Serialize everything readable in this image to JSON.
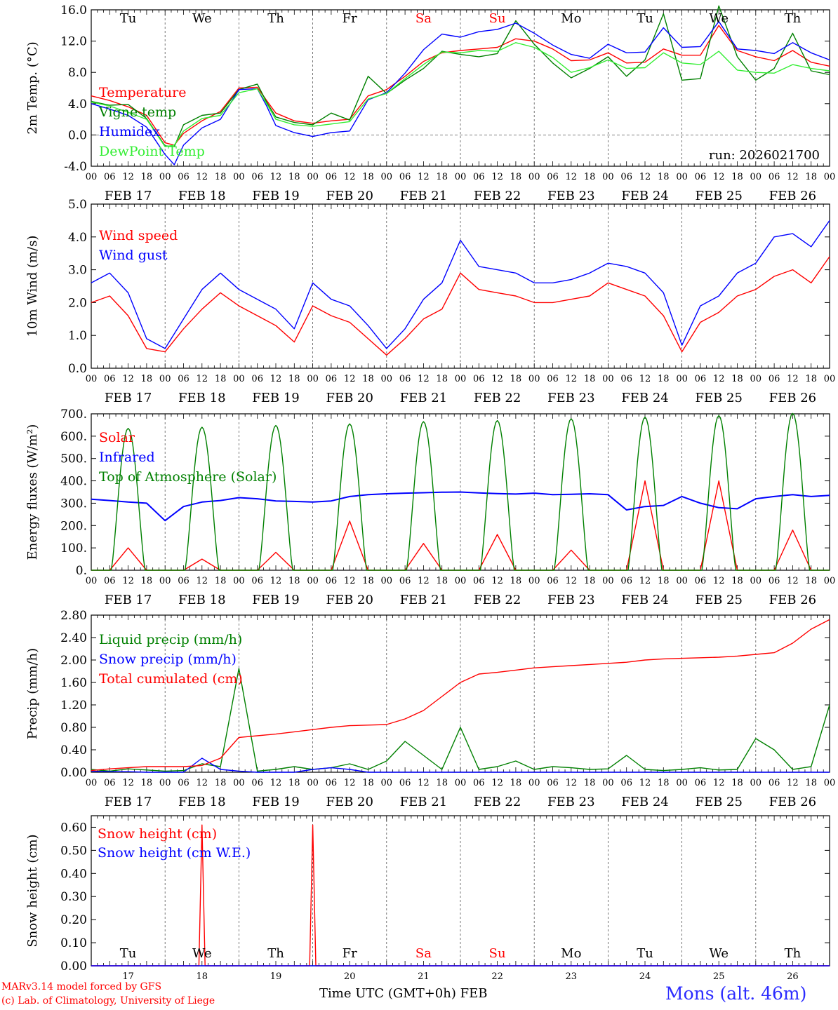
{
  "colors": {
    "red": "#ff0000",
    "green": "#008000",
    "blue": "#0000ff",
    "light_green": "#33ee33",
    "grid": "#555555",
    "axis": "#000000",
    "weekend": "#ff0000",
    "station": "#2c2cff"
  },
  "days": [
    {
      "dow": "Tu",
      "month_label": "FEB 17",
      "num": "17",
      "weekend": false
    },
    {
      "dow": "We",
      "month_label": "FEB 18",
      "num": "18",
      "weekend": false
    },
    {
      "dow": "Th",
      "month_label": "FEB 19",
      "num": "19",
      "weekend": false
    },
    {
      "dow": "Fr",
      "month_label": "FEB 20",
      "num": "20",
      "weekend": false
    },
    {
      "dow": "Sa",
      "month_label": "FEB 21",
      "num": "21",
      "weekend": true
    },
    {
      "dow": "Su",
      "month_label": "FEB 22",
      "num": "22",
      "weekend": true
    },
    {
      "dow": "Mo",
      "month_label": "FEB 23",
      "num": "23",
      "weekend": false
    },
    {
      "dow": "Tu",
      "month_label": "FEB 24",
      "num": "24",
      "weekend": false
    },
    {
      "dow": "We",
      "month_label": "FEB 25",
      "num": "25",
      "weekend": false
    },
    {
      "dow": "Th",
      "month_label": "FEB 26",
      "num": "26",
      "weekend": false
    }
  ],
  "hour_ticks": [
    "00",
    "06",
    "12",
    "18"
  ],
  "final_hour_tick": "00",
  "chart_data": [
    {
      "id": "temp",
      "type": "line",
      "ylabel": "2m Temp. (°C)",
      "ylim": [
        -4,
        16
      ],
      "yticks": [
        "-4.0",
        "0.0",
        "4.0",
        "8.0",
        "12.0",
        "16.0"
      ],
      "ytick_values": [
        -4,
        0,
        4,
        8,
        12,
        16
      ],
      "zero_line": true,
      "run_label": "run: 2026021700",
      "x_hours": [
        0,
        6,
        12,
        18,
        24,
        27,
        30,
        36,
        42,
        48,
        54,
        57,
        60,
        66,
        72,
        78,
        84,
        90,
        96,
        102,
        108,
        114,
        120,
        126,
        132,
        138,
        144,
        150,
        156,
        162,
        168,
        174,
        180,
        186,
        192,
        198,
        204,
        210,
        216,
        222,
        228,
        234,
        240
      ],
      "series": [
        {
          "name": "Temperature",
          "color": "red",
          "values": [
            5.0,
            4.4,
            3.6,
            2.5,
            -1.0,
            -1.3,
            0.2,
            1.8,
            3.0,
            6.0,
            6.1,
            4.4,
            2.8,
            1.8,
            1.5,
            1.8,
            2.0,
            5.0,
            5.8,
            7.5,
            9.4,
            10.5,
            10.8,
            11.0,
            11.2,
            12.3,
            12.0,
            11.0,
            9.5,
            9.6,
            10.5,
            9.2,
            9.3,
            11.0,
            10.2,
            10.2,
            14.0,
            10.8,
            10.0,
            9.5,
            10.8,
            9.3,
            8.8
          ]
        },
        {
          "name": "Vigne temp",
          "color": "green",
          "values": [
            4.3,
            3.8,
            3.9,
            2.1,
            -1.4,
            -1.5,
            1.3,
            2.5,
            2.8,
            5.8,
            6.5,
            4.2,
            2.3,
            1.6,
            1.3,
            2.8,
            1.9,
            7.5,
            5.3,
            7.0,
            8.5,
            10.7,
            10.3,
            10.0,
            10.4,
            14.6,
            11.6,
            9.2,
            7.3,
            8.5,
            10.0,
            7.5,
            9.6,
            15.5,
            7.0,
            7.2,
            16.5,
            10.0,
            7.0,
            8.5,
            13.0,
            8.2,
            7.7
          ]
        },
        {
          "name": "Humidex",
          "color": "blue",
          "values": [
            4.0,
            3.3,
            2.5,
            1.0,
            -2.5,
            -3.8,
            -1.3,
            0.9,
            2.0,
            5.8,
            5.9,
            3.7,
            1.2,
            0.3,
            -0.2,
            0.3,
            0.5,
            4.5,
            5.4,
            7.9,
            10.9,
            12.9,
            12.5,
            13.2,
            13.5,
            14.3,
            13.0,
            11.5,
            10.3,
            9.8,
            11.6,
            10.5,
            10.6,
            13.7,
            11.2,
            11.3,
            14.5,
            11.0,
            10.8,
            10.4,
            11.8,
            10.5,
            9.6
          ]
        },
        {
          "name": "DewPoint Temp",
          "color": "light_green",
          "values": [
            4.2,
            3.7,
            2.9,
            2.0,
            -1.5,
            -1.3,
            0.5,
            2.1,
            2.5,
            5.4,
            5.9,
            4.0,
            2.0,
            1.3,
            1.1,
            1.4,
            1.7,
            4.6,
            5.3,
            7.2,
            9.0,
            10.6,
            10.5,
            10.8,
            10.7,
            11.8,
            11.2,
            9.9,
            8.0,
            8.6,
            9.6,
            8.5,
            8.6,
            10.5,
            9.2,
            9.0,
            10.7,
            8.3,
            8.0,
            7.9,
            9.0,
            8.5,
            8.2
          ]
        }
      ]
    },
    {
      "id": "wind",
      "type": "line",
      "ylabel": "10m Wind (m/s)",
      "ylim": [
        0,
        5
      ],
      "yticks": [
        "0.0",
        "1.0",
        "2.0",
        "3.0",
        "4.0",
        "5.0"
      ],
      "ytick_values": [
        0,
        1,
        2,
        3,
        4,
        5
      ],
      "x_hours": [
        0,
        6,
        12,
        18,
        24,
        30,
        36,
        42,
        48,
        54,
        60,
        66,
        72,
        78,
        84,
        90,
        96,
        102,
        108,
        114,
        120,
        126,
        132,
        138,
        144,
        150,
        156,
        162,
        168,
        174,
        180,
        186,
        192,
        198,
        204,
        210,
        216,
        222,
        228,
        234,
        240
      ],
      "series": [
        {
          "name": "Wind speed",
          "color": "red",
          "values": [
            2.0,
            2.2,
            1.6,
            0.6,
            0.5,
            1.2,
            1.8,
            2.3,
            1.9,
            1.6,
            1.3,
            0.8,
            1.9,
            1.6,
            1.4,
            0.9,
            0.4,
            0.9,
            1.5,
            1.8,
            2.9,
            2.4,
            2.3,
            2.2,
            2.0,
            2.0,
            2.1,
            2.2,
            2.6,
            2.4,
            2.2,
            1.6,
            0.5,
            1.4,
            1.7,
            2.2,
            2.4,
            2.8,
            3.0,
            2.6,
            3.4
          ]
        },
        {
          "name": "Wind gust",
          "color": "blue",
          "values": [
            2.6,
            2.9,
            2.3,
            0.9,
            0.6,
            1.5,
            2.4,
            2.9,
            2.4,
            2.1,
            1.8,
            1.2,
            2.6,
            2.1,
            1.9,
            1.3,
            0.6,
            1.2,
            2.1,
            2.6,
            3.9,
            3.1,
            3.0,
            2.9,
            2.6,
            2.6,
            2.7,
            2.9,
            3.2,
            3.1,
            2.9,
            2.3,
            0.7,
            1.9,
            2.2,
            2.9,
            3.2,
            4.0,
            4.1,
            3.7,
            4.5
          ]
        }
      ]
    },
    {
      "id": "flux",
      "type": "line",
      "ylabel": "Energy fluxes (W/m²)",
      "ylim": [
        0,
        700
      ],
      "yticks": [
        "0.",
        "100.",
        "200.",
        "300.",
        "400.",
        "500.",
        "600.",
        "700."
      ],
      "ytick_values": [
        0,
        100,
        200,
        300,
        400,
        500,
        600,
        700
      ],
      "x_hours": [
        0,
        6,
        12,
        18,
        24,
        30,
        36,
        42,
        48,
        54,
        60,
        66,
        72,
        78,
        84,
        90,
        96,
        102,
        108,
        114,
        120,
        126,
        132,
        138,
        144,
        150,
        156,
        162,
        168,
        174,
        180,
        186,
        192,
        198,
        204,
        210,
        216,
        222,
        228,
        234,
        240
      ],
      "toa_daily_peaks": [
        635,
        640,
        648,
        655,
        665,
        670,
        678,
        685,
        692,
        702
      ],
      "series": [
        {
          "name": "Solar",
          "color": "red",
          "values": [
            0,
            0,
            100,
            0,
            0,
            0,
            50,
            0,
            0,
            0,
            80,
            0,
            0,
            0,
            220,
            0,
            0,
            0,
            120,
            0,
            0,
            0,
            160,
            0,
            0,
            0,
            90,
            0,
            0,
            0,
            400,
            0,
            0,
            0,
            400,
            0,
            0,
            0,
            180,
            0,
            0
          ]
        },
        {
          "name": "Infrared",
          "color": "blue",
          "values": [
            318,
            312,
            305,
            300,
            222,
            285,
            305,
            312,
            325,
            320,
            310,
            308,
            305,
            310,
            330,
            338,
            342,
            345,
            347,
            349,
            350,
            346,
            343,
            341,
            345,
            338,
            340,
            342,
            338,
            270,
            285,
            290,
            330,
            300,
            280,
            275,
            320,
            330,
            338,
            330,
            335
          ]
        },
        {
          "name": "Top of Atmosphere (Solar)",
          "color": "green",
          "values": []
        }
      ]
    },
    {
      "id": "precip",
      "type": "line",
      "ylabel": "Precip (mm/h)",
      "ylim": [
        0,
        2.8
      ],
      "yticks": [
        "0.00",
        "0.40",
        "0.80",
        "1.20",
        "1.60",
        "2.00",
        "2.40",
        "2.80"
      ],
      "ytick_values": [
        0,
        0.4,
        0.8,
        1.2,
        1.6,
        2.0,
        2.4,
        2.8
      ],
      "x_hours": [
        0,
        6,
        12,
        18,
        24,
        30,
        36,
        42,
        48,
        54,
        60,
        66,
        72,
        78,
        84,
        90,
        96,
        102,
        108,
        114,
        120,
        126,
        132,
        138,
        144,
        150,
        156,
        162,
        168,
        174,
        180,
        186,
        192,
        198,
        204,
        210,
        216,
        222,
        228,
        234,
        240
      ],
      "series": [
        {
          "name": "Liquid precip (mm/h)",
          "color": "green",
          "values": [
            0.05,
            0.02,
            0.06,
            0.04,
            0.02,
            0.03,
            0.15,
            0.1,
            1.85,
            0.02,
            0.05,
            0.1,
            0.05,
            0.08,
            0.15,
            0.05,
            0.2,
            0.55,
            0.3,
            0.05,
            0.8,
            0.05,
            0.1,
            0.2,
            0.05,
            0.1,
            0.08,
            0.05,
            0.06,
            0.3,
            0.05,
            0.03,
            0.05,
            0.08,
            0.04,
            0.05,
            0.6,
            0.4,
            0.05,
            0.1,
            1.2
          ]
        },
        {
          "name": "Snow precip (mm/h)",
          "color": "blue",
          "values": [
            0.02,
            0.01,
            0.01,
            0.0,
            0.0,
            0.0,
            0.25,
            0.05,
            0.02,
            0.0,
            0.0,
            0.0,
            0.05,
            0.08,
            0.05,
            0.0,
            0.0,
            0.0,
            0.0,
            0.0,
            0.0,
            0.0,
            0.0,
            0.0,
            0.0,
            0.0,
            0.0,
            0.0,
            0.0,
            0.0,
            0.0,
            0.0,
            0.0,
            0.0,
            0.0,
            0.0,
            0.0,
            0.0,
            0.0,
            0.0,
            0.0
          ]
        },
        {
          "name": "Total cumulated (cm)",
          "color": "red",
          "values": [
            0.03,
            0.06,
            0.08,
            0.1,
            0.1,
            0.1,
            0.12,
            0.25,
            0.62,
            0.65,
            0.68,
            0.72,
            0.76,
            0.8,
            0.83,
            0.84,
            0.85,
            0.95,
            1.1,
            1.35,
            1.6,
            1.75,
            1.78,
            1.82,
            1.86,
            1.88,
            1.9,
            1.92,
            1.94,
            1.96,
            2.0,
            2.02,
            2.03,
            2.04,
            2.05,
            2.07,
            2.1,
            2.13,
            2.3,
            2.55,
            2.72
          ]
        }
      ]
    },
    {
      "id": "snow",
      "type": "line",
      "ylabel": "Snow height (cm)",
      "ylim": [
        0,
        0.65
      ],
      "yticks": [
        "0.00",
        "0.10",
        "0.20",
        "0.30",
        "0.40",
        "0.50",
        "0.60"
      ],
      "ytick_values": [
        0,
        0.1,
        0.2,
        0.3,
        0.4,
        0.5,
        0.6
      ],
      "x_hours": [
        0,
        35,
        36,
        37,
        71,
        72,
        73,
        240
      ],
      "series": [
        {
          "name": "Snow height (cm)",
          "color": "red",
          "values": [
            0,
            0,
            0.61,
            0,
            0,
            0.61,
            0,
            0
          ]
        },
        {
          "name": "Snow height (cm W.E.)",
          "color": "blue",
          "values": [
            0,
            0,
            0,
            0,
            0,
            0,
            0,
            0
          ]
        }
      ]
    }
  ],
  "footer": {
    "credit_line1": "MARv3.14 model forced by GFS",
    "credit_line2": "(c) Lab. of Climatology, University of Liege",
    "x_title": "Time UTC (GMT+0h) FEB",
    "station": "Mons (alt. 46m)"
  }
}
